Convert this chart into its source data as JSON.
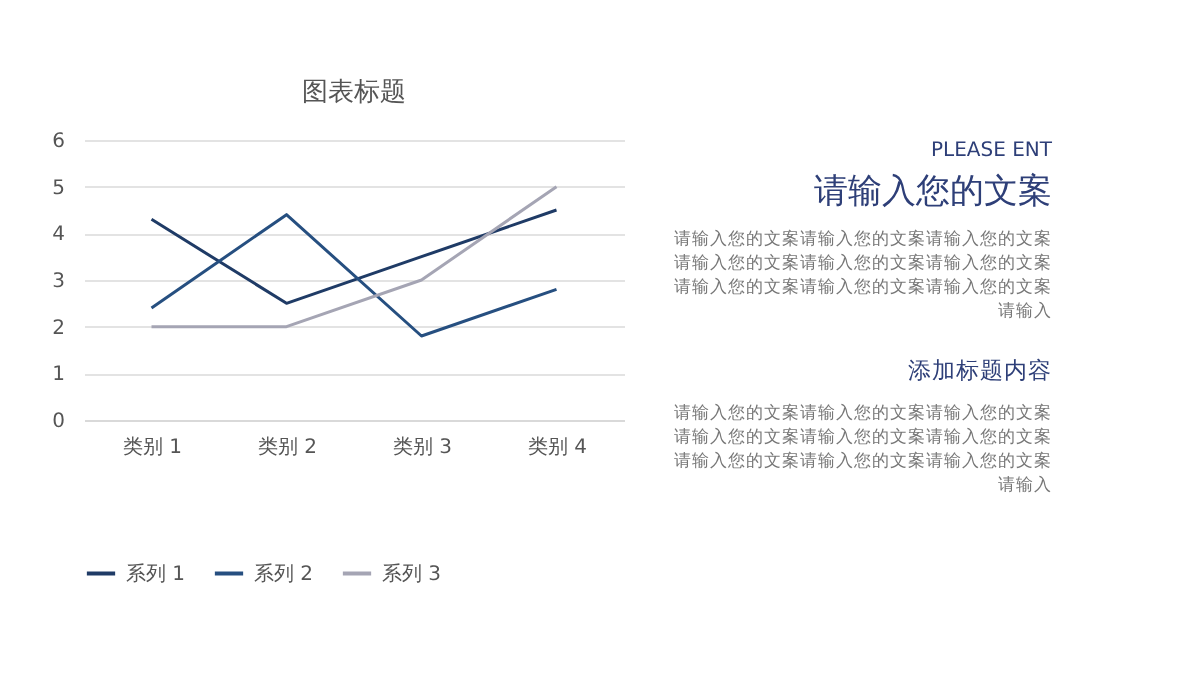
{
  "chart_data": {
    "type": "line",
    "title": "图表标题",
    "categories": [
      "类别 1",
      "类别 2",
      "类别 3",
      "类别 4"
    ],
    "series": [
      {
        "name": "系列 1",
        "color": "#1f3b66",
        "values": [
          4.3,
          2.5,
          3.5,
          4.5
        ]
      },
      {
        "name": "系列 2",
        "color": "#264f80",
        "values": [
          2.4,
          4.4,
          1.8,
          2.8
        ]
      },
      {
        "name": "系列 3",
        "color": "#a5a5b4",
        "values": [
          2,
          2,
          3,
          5
        ]
      }
    ],
    "ylim": [
      0,
      6
    ],
    "yticks": [
      0,
      1,
      2,
      3,
      4,
      5,
      6
    ],
    "grid": "y",
    "legend": "bottom",
    "marker": "none",
    "line_style": "solid",
    "annotations": [
      "PLEASE ENT",
      "请输入您的文案",
      "请输入您的文案请输入您的文案请输入您的文案请输入您的文案请输入您的文案请输入您的文案请输入您的文案请输入您的文案请输入您的文案请输入",
      "添加标题内容",
      "请输入您的文案请输入您的文案请输入您的文案请输入您的文案请输入您的文案请输入您的文案请输入您的文案请输入您的文案请输入您的文案请输入"
    ]
  }
}
